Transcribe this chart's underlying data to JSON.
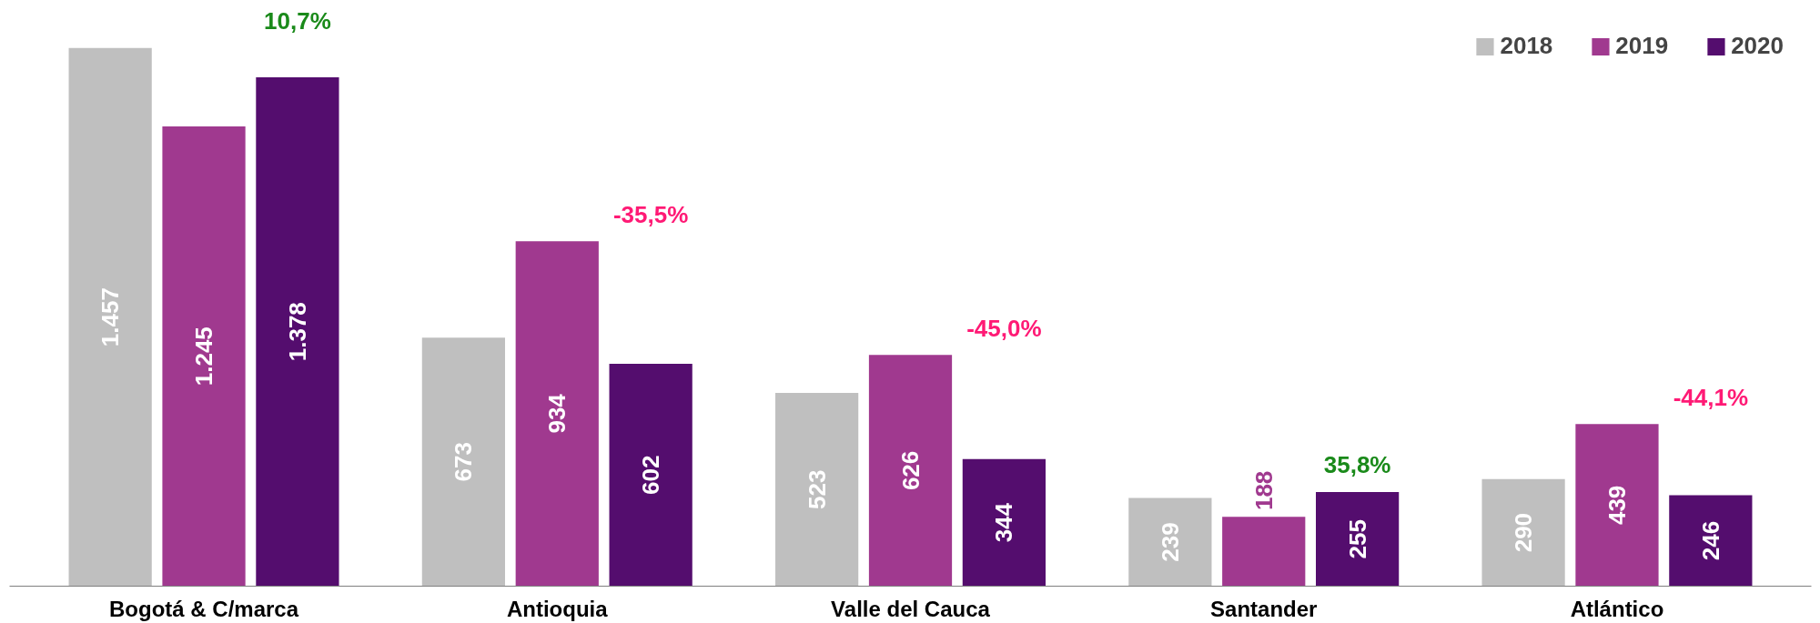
{
  "chart_data": {
    "type": "bar",
    "categories": [
      "Bogotá & C/marca",
      "Antioquia",
      "Valle del Cauca",
      "Santander",
      "Atlántico"
    ],
    "series": [
      {
        "name": "2018",
        "color": "#bfbfbf",
        "values": [
          1457,
          673,
          523,
          239,
          290
        ],
        "value_labels": [
          "1.457",
          "673",
          "523",
          "239",
          "290"
        ]
      },
      {
        "name": "2019",
        "color": "#a0398f",
        "values": [
          1245,
          934,
          626,
          188,
          439
        ],
        "value_labels": [
          "1.245",
          "934",
          "626",
          "188",
          "439"
        ]
      },
      {
        "name": "2020",
        "color": "#540d6e",
        "values": [
          1378,
          602,
          344,
          255,
          246
        ],
        "value_labels": [
          "1.378",
          "602",
          "344",
          "255",
          "246"
        ]
      }
    ],
    "annotations": [
      "10,7%",
      "-35,5%",
      "-45,0%",
      "35,8%",
      "-44,1%"
    ],
    "legend": "top right",
    "grid": false
  }
}
